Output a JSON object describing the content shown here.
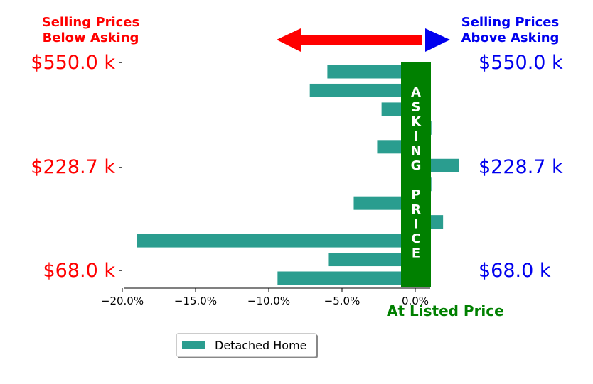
{
  "chart_data": {
    "type": "bar",
    "orientation": "horizontal",
    "series": [
      {
        "name": "Detached Home",
        "color": "#2a9d8f",
        "values": [
          -9.4,
          -5.9,
          -19.0,
          1.9,
          -4.2,
          1.1,
          3.0,
          -2.6,
          1.1,
          -2.3,
          -7.2,
          -6.0
        ]
      }
    ],
    "xlim": [
      -20.0,
      2.5
    ],
    "xticks": [
      "−20.0%",
      "−15.0%",
      "−10.0%",
      "−5.0%",
      "0.0%"
    ],
    "yticks_left": [
      "$550.0 k",
      "$228.7 k",
      "$68.0 k"
    ],
    "yticks_right": [
      "$550.0 k",
      "$228.7 k",
      "$68.0 k"
    ],
    "header_left": [
      "Selling Prices",
      "Below Asking"
    ],
    "header_right": [
      "Selling Prices",
      "Above Asking"
    ],
    "center_band_letters": [
      "A",
      "S",
      "K",
      "I",
      "N",
      "G",
      "",
      "P",
      "R",
      "I",
      "C",
      "E"
    ],
    "at_listed_label": "At Listed Price",
    "legend_label": "Detached Home",
    "colors": {
      "below": "#ff0000",
      "above": "#0000ee",
      "band": "#008000",
      "bar": "#2a9d8f"
    },
    "legend_position": "bottom-center"
  }
}
